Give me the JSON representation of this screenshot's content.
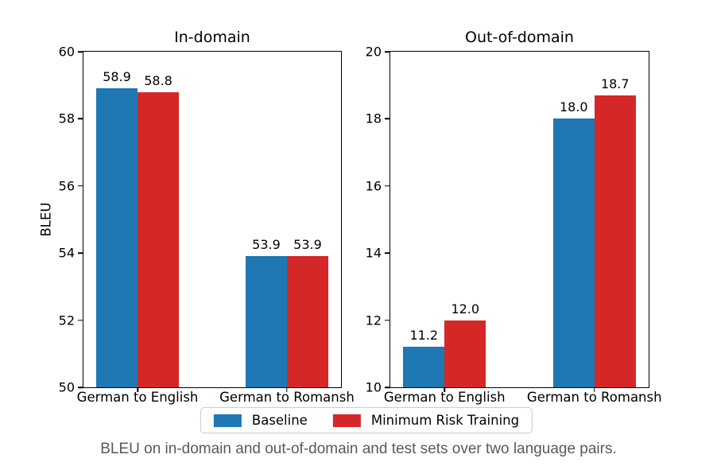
{
  "chart_data": [
    {
      "type": "bar",
      "title": "In-domain",
      "ylabel": "BLEU",
      "categories": [
        "German to English",
        "German to Romansh"
      ],
      "series": [
        {
          "name": "Baseline",
          "color": "#1f77b4",
          "values": [
            58.9,
            53.9
          ]
        },
        {
          "name": "Minimum Risk Training",
          "color": "#d62728",
          "values": [
            58.8,
            53.9
          ]
        }
      ],
      "bar_labels": [
        [
          "58.9",
          "53.9"
        ],
        [
          "58.8",
          "53.9"
        ]
      ],
      "ylim": [
        50,
        60
      ],
      "yticks": [
        50,
        52,
        54,
        56,
        58,
        60
      ],
      "grid": false,
      "legend_position": "lower center outside"
    },
    {
      "type": "bar",
      "title": "Out-of-domain",
      "ylabel": "",
      "categories": [
        "German to English",
        "German to Romansh"
      ],
      "series": [
        {
          "name": "Baseline",
          "color": "#1f77b4",
          "values": [
            11.2,
            18.0
          ]
        },
        {
          "name": "Minimum Risk Training",
          "color": "#d62728",
          "values": [
            12.0,
            18.7
          ]
        }
      ],
      "bar_labels": [
        [
          "11.2",
          "18.0"
        ],
        [
          "12.0",
          "18.7"
        ]
      ],
      "ylim": [
        10,
        20
      ],
      "yticks": [
        10,
        12,
        14,
        16,
        18,
        20
      ],
      "grid": false,
      "legend_position": "lower center outside"
    }
  ],
  "legend": {
    "items": [
      {
        "label": "Baseline",
        "color": "#1f77b4"
      },
      {
        "label": "Minimum Risk Training",
        "color": "#d62728"
      }
    ]
  },
  "caption": "BLEU on in-domain and out-of-domain and test sets over two language pairs."
}
